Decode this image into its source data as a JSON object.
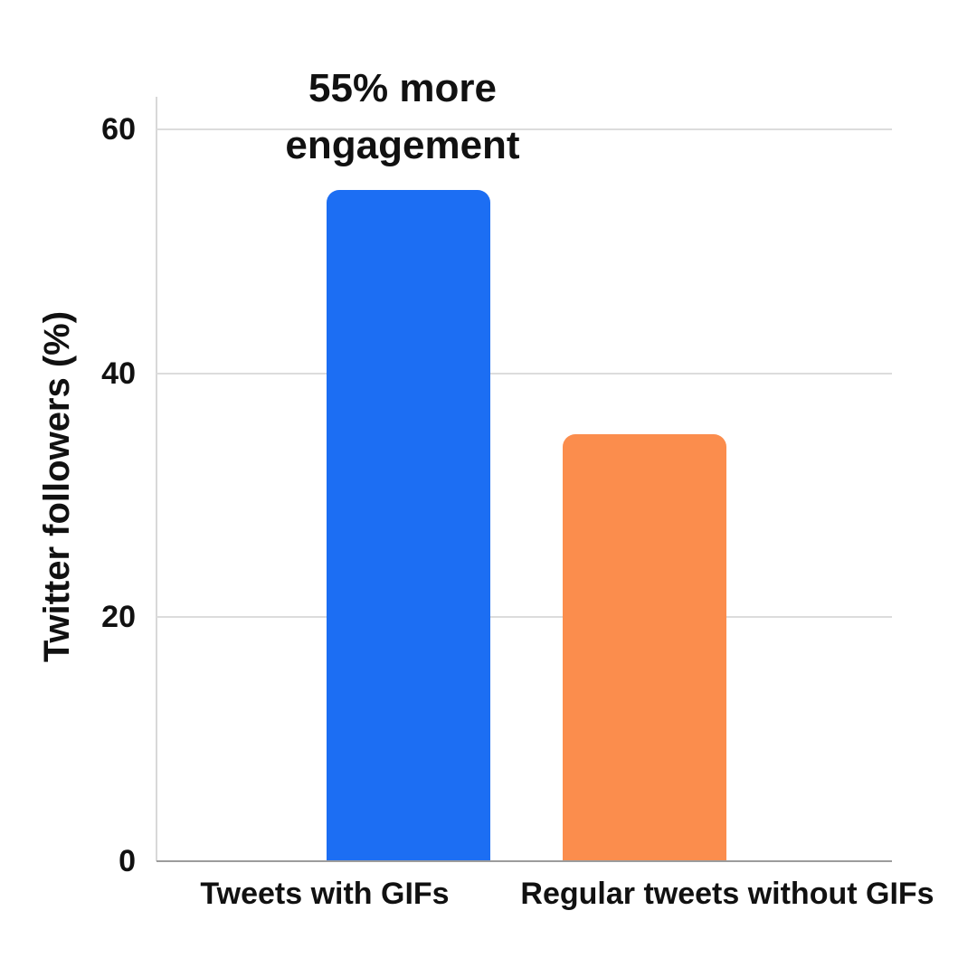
{
  "chart_data": {
    "type": "bar",
    "categories": [
      "Tweets with GIFs",
      "Regular tweets without GIFs"
    ],
    "values": [
      55,
      35
    ],
    "bar_colors": [
      "#1C6EF3",
      "#FB8D4D"
    ],
    "title": "",
    "xlabel": "",
    "ylabel": "Twitter followers (%)",
    "yticks": [
      0,
      20,
      40,
      60
    ],
    "ylim": [
      0,
      62.5
    ],
    "grid": true,
    "legend": false,
    "annotation": "55% more\nengagement",
    "annotation_target": "Tweets with GIFs"
  },
  "colors": {
    "background": "#FFFFFF",
    "text": "#111111",
    "gridline": "#DCDCDC",
    "axis_line": "#D8D8D8",
    "baseline": "#9C9C9C",
    "bar_blue": "#1C6EF3",
    "bar_orange": "#FB8D4D"
  }
}
